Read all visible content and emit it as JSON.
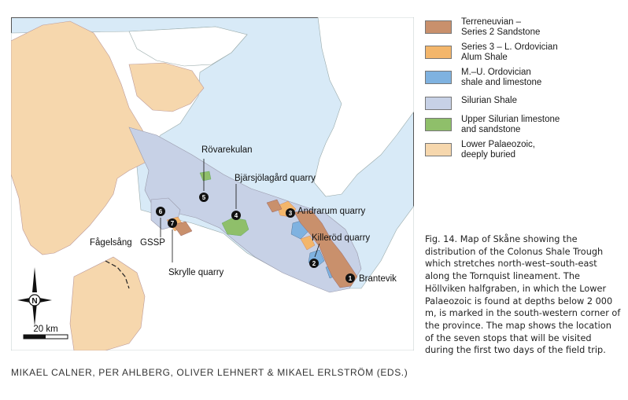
{
  "legend": [
    {
      "label": "Terreneuvian –\nSeries 2 Sandstone",
      "color": "#c9906c"
    },
    {
      "label": "Series 3 – L. Ordovician\nAlum Shale",
      "color": "#f3b66b"
    },
    {
      "label": "M.–U. Ordovician\nshale and limestone",
      "color": "#7fb2e0"
    },
    {
      "label": "Silurian Shale",
      "color": "#c7d1e6"
    },
    {
      "label": "Upper Silurian limestone\nand sandstone",
      "color": "#8fbf6a"
    },
    {
      "label": "Lower Palaeozoic,\ndeeply buried",
      "color": "#f6d7ad"
    }
  ],
  "sea_color": "#d8eaf7",
  "stops": [
    {
      "number": "1",
      "name": "Brantevik"
    },
    {
      "number": "2",
      "name": "Killeröd quarry"
    },
    {
      "number": "3",
      "name": "Andrarum quarry"
    },
    {
      "number": "4",
      "name": "Bjärsjölagård quarry"
    },
    {
      "number": "5",
      "name": "Rövarekulan"
    },
    {
      "number": "6",
      "name": "Fågelsång"
    },
    {
      "number": "7",
      "name": "Skrylle quarry"
    }
  ],
  "gssp_label": "GSSP",
  "scale_label": "20 km",
  "north_label": "N",
  "caption": "Fig. 14. Map of Skåne showing the distribution of the Colonus Shale Trough which stretches north-west–south-east along the Tornquist lineament. The Höllviken halfgraben, in which the Lower Palaeozoic is found at depths below 2 000 m, is marked in the south-western corner of the province. The map shows the location of the seven stops that will be visited during the first two days of the field trip.",
  "footer": "MIKAEL CALNER, PER AHLBERG, OLIVER LEHNERT & MIKAEL ERLSTRÖM (EDS.)"
}
